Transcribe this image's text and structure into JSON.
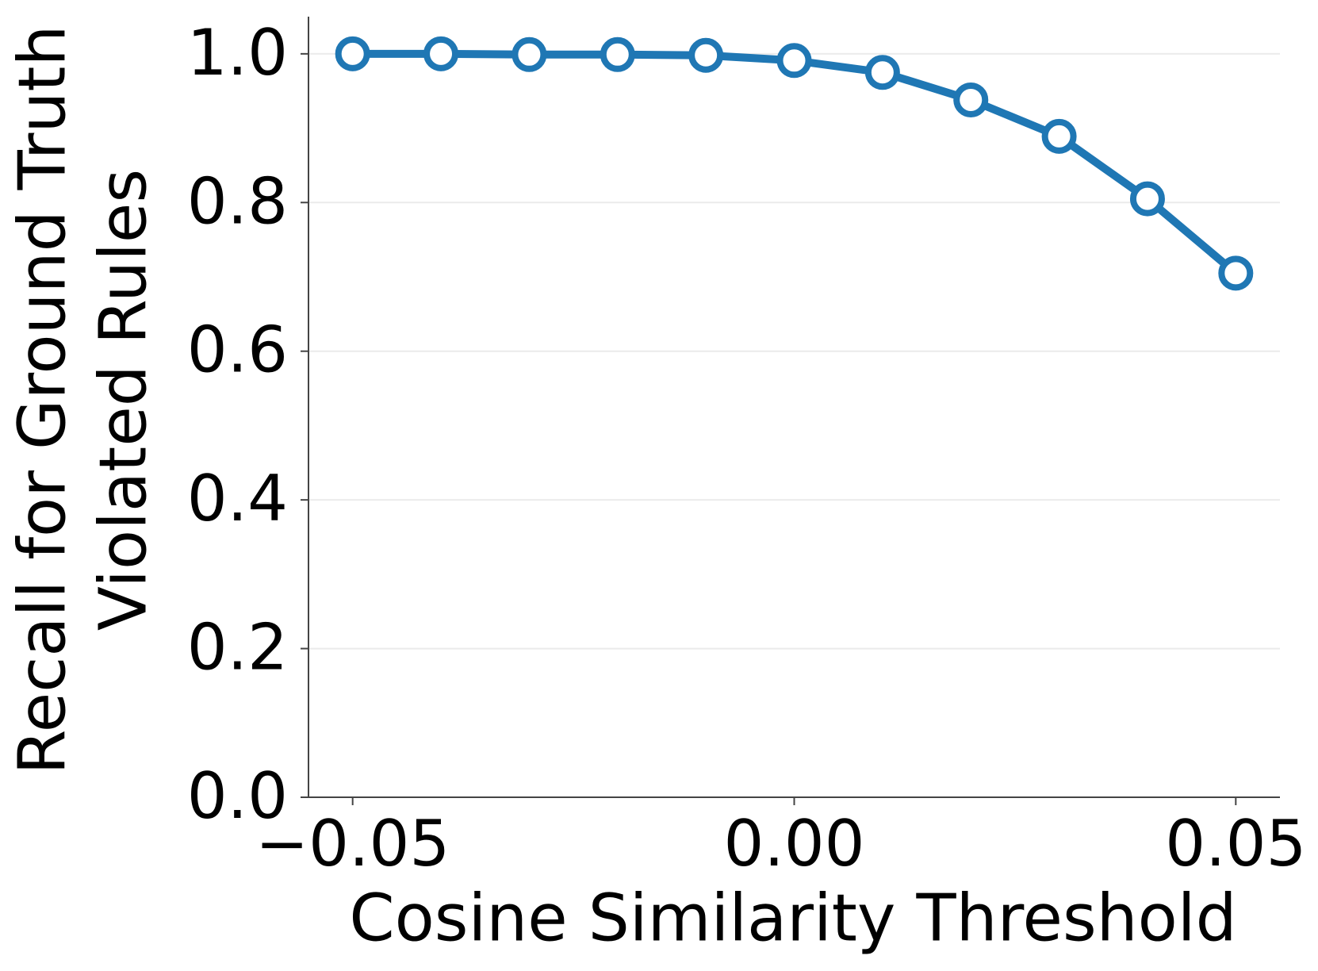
{
  "chart_data": {
    "type": "line",
    "xlabel": "Cosine Similarity Threshold",
    "ylabel": [
      "Recall for Ground Truth",
      "Violated Rules"
    ],
    "x": [
      -0.05,
      -0.04,
      -0.03,
      -0.02,
      -0.01,
      0.0,
      0.01,
      0.02,
      0.03,
      0.04,
      0.05
    ],
    "series": [
      {
        "color": "#1f77b4",
        "values": [
          1.0,
          1.0,
          0.999,
          0.999,
          0.998,
          0.991,
          0.975,
          0.938,
          0.889,
          0.805,
          0.705
        ]
      }
    ],
    "xlim": [
      -0.055,
      0.055
    ],
    "xticks": [
      {
        "value": -0.05,
        "label": "−0.05"
      },
      {
        "value": 0.0,
        "label": "0.00"
      },
      {
        "value": 0.05,
        "label": "0.05"
      }
    ],
    "ylim": [
      0,
      1.05
    ],
    "yticks": [
      {
        "value": 0,
        "label": "0.0"
      },
      0.2,
      0.4,
      0.6,
      0.8,
      {
        "value": 1,
        "label": "1.0"
      }
    ],
    "grid": true
  }
}
